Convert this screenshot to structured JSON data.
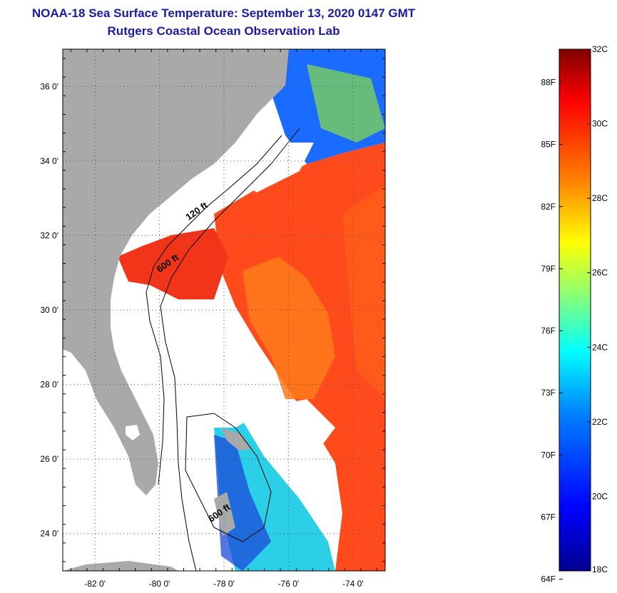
{
  "header": {
    "title": "NOAA-18 Sea Surface Temperature:  September 13, 2020 0147 GMT",
    "subtitle": "Rutgers Coastal Ocean Observation Lab"
  },
  "map": {
    "lon_range": [
      -83,
      -73
    ],
    "lat_range": [
      23,
      37
    ],
    "lat_ticks": [
      {
        "value": 24,
        "label": "24 0'"
      },
      {
        "value": 26,
        "label": "26 0'"
      },
      {
        "value": 28,
        "label": "28 0'"
      },
      {
        "value": 30,
        "label": "30 0'"
      },
      {
        "value": 32,
        "label": "32 0'"
      },
      {
        "value": 34,
        "label": "34 0'"
      },
      {
        "value": 36,
        "label": "36 0'"
      }
    ],
    "lon_ticks": [
      {
        "value": -82,
        "label": "-82 0'"
      },
      {
        "value": -80,
        "label": "-80 0'"
      },
      {
        "value": -78,
        "label": "-78 0'"
      },
      {
        "value": -76,
        "label": "-76 0'"
      },
      {
        "value": -74,
        "label": "-74 0'"
      }
    ],
    "contour_labels": [
      {
        "text": "120 ft",
        "lon": -79.1,
        "lat": 32.4
      },
      {
        "text": "600 ft",
        "lon": -80.0,
        "lat": 31.0
      },
      {
        "text": "600 ft",
        "lon": -78.4,
        "lat": 24.3
      }
    ],
    "colors": {
      "land": "#a9a9a9",
      "cloud": "#ffffff",
      "grid": "#444444"
    }
  },
  "colorbar": {
    "min_c": 18,
    "max_c": 32,
    "celsius_labels": [
      "32C",
      "30C",
      "28C",
      "26C",
      "24C",
      "22C",
      "20C",
      "18C"
    ],
    "fahrenheit_labels": [
      "88F",
      "85F",
      "82F",
      "79F",
      "76F",
      "73F",
      "70F",
      "67F",
      "64F"
    ],
    "fahrenheit_values": [
      88,
      85,
      82,
      79,
      76,
      73,
      70,
      67,
      64
    ],
    "stops": [
      "#00008f",
      "#0000ff",
      "#0080ff",
      "#00ffff",
      "#80ff80",
      "#ffff00",
      "#ff8000",
      "#ff0000",
      "#800000"
    ]
  }
}
